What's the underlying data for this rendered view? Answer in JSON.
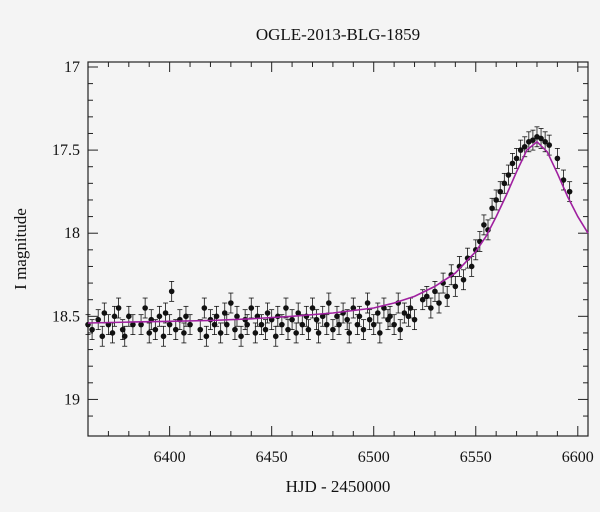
{
  "chart_data": {
    "type": "scatter",
    "title": "OGLE-2013-BLG-1859",
    "xlabel": "HJD - 2450000",
    "ylabel": "I magnitude",
    "xlim": [
      6360,
      6605
    ],
    "ylim": [
      19.22,
      16.97
    ],
    "y_inverted": true,
    "xticks": [
      6400,
      6450,
      6500,
      6550,
      6600
    ],
    "yticks": [
      17,
      17.5,
      18,
      18.5,
      19
    ],
    "xtick_labels": [
      "6400",
      "6450",
      "6500",
      "6550",
      "6600"
    ],
    "ytick_labels": [
      "17",
      "17.5",
      "18",
      "18.5",
      "19"
    ],
    "grid": false,
    "legend": "none",
    "model_color": "#a020a0",
    "point_color": "#111111",
    "series": [
      {
        "kind": "points",
        "x": [
          6360,
          6362,
          6365,
          6367,
          6368,
          6370,
          6372,
          6373,
          6375,
          6377,
          6378,
          6380,
          6382,
          6386,
          6388,
          6390,
          6391,
          6393,
          6395,
          6397,
          6398,
          6400,
          6401,
          6403,
          6405,
          6407,
          6408,
          6410,
          6415,
          6417,
          6418,
          6420,
          6422,
          6423,
          6425,
          6427,
          6428,
          6430,
          6432,
          6433,
          6435,
          6437,
          6438,
          6440,
          6442,
          6443,
          6445,
          6447,
          6448,
          6450,
          6452,
          6453,
          6455,
          6457,
          6458,
          6460,
          6462,
          6463,
          6465,
          6467,
          6468,
          6470,
          6472,
          6473,
          6475,
          6477,
          6478,
          6480,
          6482,
          6483,
          6485,
          6487,
          6488,
          6490,
          6492,
          6493,
          6495,
          6497,
          6498,
          6500,
          6502,
          6503,
          6505,
          6507,
          6508,
          6510,
          6512,
          6513,
          6515,
          6517,
          6518,
          6520,
          6524,
          6526,
          6528,
          6530,
          6532,
          6534,
          6536,
          6538,
          6540,
          6542,
          6544,
          6546,
          6548,
          6550,
          6552,
          6554,
          6556,
          6558,
          6560,
          6562,
          6564,
          6566,
          6568,
          6570,
          6572,
          6574,
          6576,
          6578,
          6580,
          6582,
          6584,
          6586,
          6590,
          6593,
          6596
        ],
        "y": [
          18.55,
          18.58,
          18.52,
          18.62,
          18.48,
          18.55,
          18.6,
          18.5,
          18.45,
          18.58,
          18.62,
          18.5,
          18.55,
          18.55,
          18.45,
          18.6,
          18.52,
          18.58,
          18.5,
          18.62,
          18.48,
          18.55,
          18.35,
          18.58,
          18.52,
          18.6,
          18.5,
          18.55,
          18.58,
          18.45,
          18.62,
          18.52,
          18.55,
          18.5,
          18.6,
          18.48,
          18.55,
          18.42,
          18.58,
          18.5,
          18.62,
          18.52,
          18.55,
          18.45,
          18.6,
          18.5,
          18.55,
          18.58,
          18.48,
          18.52,
          18.62,
          18.5,
          18.55,
          18.45,
          18.58,
          18.52,
          18.6,
          18.48,
          18.55,
          18.5,
          18.58,
          18.45,
          18.52,
          18.6,
          18.5,
          18.55,
          18.42,
          18.58,
          18.5,
          18.55,
          18.48,
          18.52,
          18.6,
          18.45,
          18.55,
          18.5,
          18.58,
          18.42,
          18.52,
          18.55,
          18.48,
          18.6,
          18.45,
          18.52,
          18.5,
          18.55,
          18.42,
          18.58,
          18.48,
          18.5,
          18.45,
          18.52,
          18.4,
          18.38,
          18.45,
          18.35,
          18.42,
          18.3,
          18.38,
          18.25,
          18.32,
          18.2,
          18.28,
          18.15,
          18.2,
          18.1,
          18.05,
          17.95,
          17.98,
          17.85,
          17.8,
          17.75,
          17.7,
          17.65,
          17.58,
          17.55,
          17.5,
          17.48,
          17.45,
          17.44,
          17.42,
          17.43,
          17.45,
          17.47,
          17.55,
          17.68,
          17.75
        ]
      },
      {
        "kind": "model",
        "x": [
          6360,
          6380,
          6400,
          6420,
          6440,
          6460,
          6480,
          6500,
          6510,
          6520,
          6530,
          6540,
          6550,
          6555,
          6560,
          6565,
          6570,
          6575,
          6580,
          6585,
          6590,
          6595,
          6600,
          6605
        ],
        "y": [
          18.54,
          18.535,
          18.53,
          18.525,
          18.515,
          18.5,
          18.48,
          18.45,
          18.42,
          18.38,
          18.32,
          18.24,
          18.11,
          18.02,
          17.9,
          17.77,
          17.63,
          17.5,
          17.45,
          17.51,
          17.64,
          17.78,
          17.9,
          18.0
        ]
      }
    ]
  }
}
